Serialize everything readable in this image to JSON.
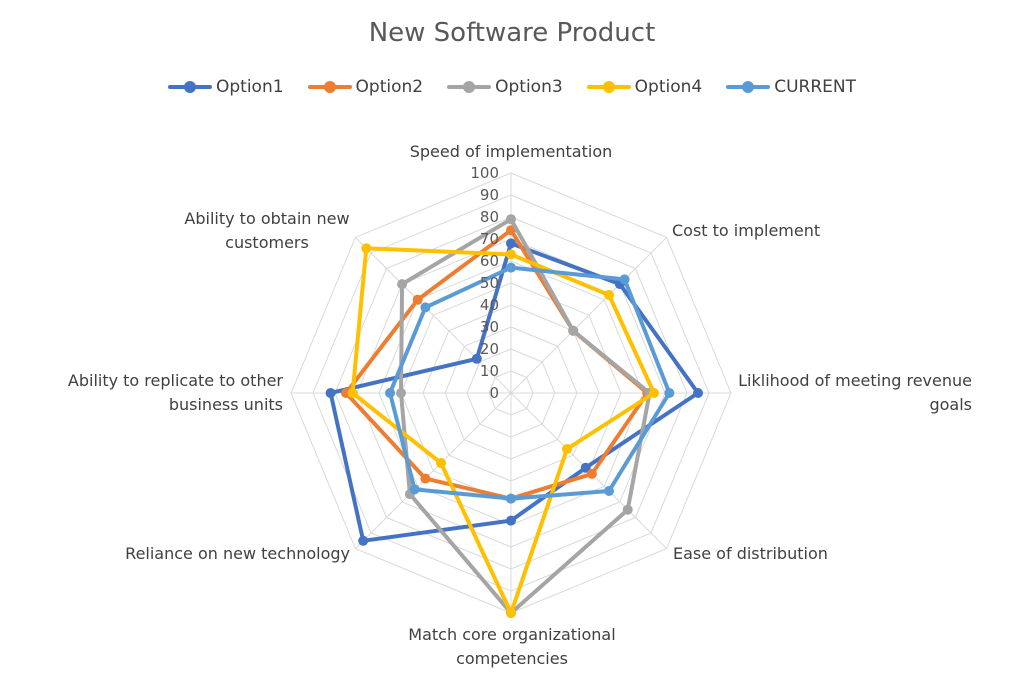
{
  "chart_data": {
    "type": "radar",
    "title": "New Software Product",
    "categories": [
      [
        "Speed of implementation"
      ],
      [
        "Cost to implement"
      ],
      [
        "Liklihood of meeting revenue",
        "goals"
      ],
      [
        "Ease of distribution"
      ],
      [
        "Match core organizational",
        "competencies"
      ],
      [
        "Reliance on new technology"
      ],
      [
        "Ability to replicate to other",
        "business units"
      ],
      [
        "Ability to obtain new",
        "customers"
      ]
    ],
    "category_names": [
      "Speed of implementation",
      "Cost to implement",
      "Liklihood of meeting revenue goals",
      "Ease of distribution",
      "Match core organizational competencies",
      "Reliance on new technology",
      "Ability to replicate to other business units",
      "Ability to obtain new customers"
    ],
    "ticks": [
      "0",
      "10",
      "20",
      "30",
      "40",
      "50",
      "60",
      "70",
      "80",
      "90",
      "100"
    ],
    "rmax": 100,
    "legend_position": "top",
    "grid": true,
    "series": [
      {
        "name": "Option1",
        "color": "#4472C4",
        "values": [
          68,
          70,
          85,
          48,
          58,
          95,
          82,
          22
        ]
      },
      {
        "name": "Option2",
        "color": "#ED7D31",
        "values": [
          74,
          40,
          62,
          52,
          48,
          55,
          75,
          60
        ]
      },
      {
        "name": "Option3",
        "color": "#A5A5A5",
        "values": [
          79,
          40,
          63,
          75,
          100,
          65,
          50,
          70
        ]
      },
      {
        "name": "Option4",
        "color": "#FFC000",
        "values": [
          63,
          63,
          65,
          36,
          100,
          45,
          72,
          93
        ]
      },
      {
        "name": "CURRENT",
        "color": "#5B9BD5",
        "values": [
          57,
          73,
          72,
          63,
          48,
          62,
          55,
          55
        ]
      }
    ]
  }
}
